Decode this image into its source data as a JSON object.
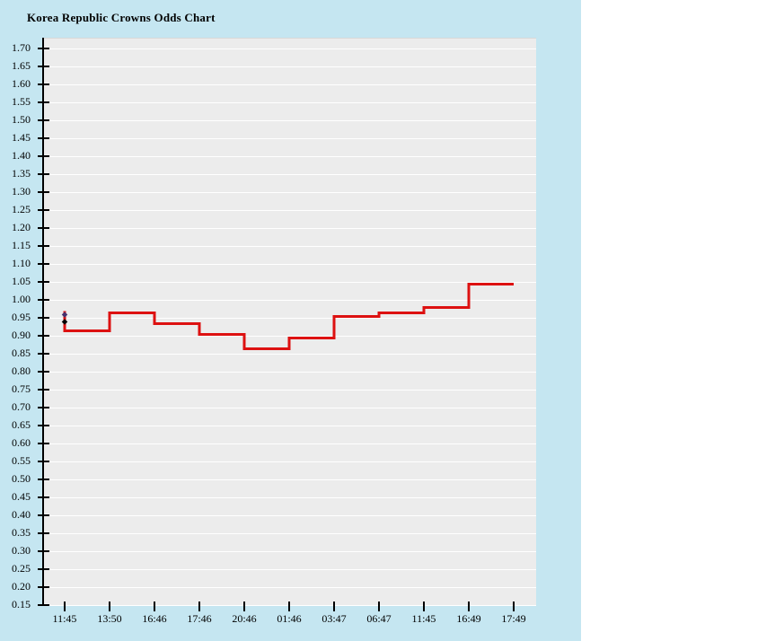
{
  "chart_data": {
    "type": "line",
    "line_style": "step",
    "title": "Korea Republic Crowns Odds Chart",
    "xlabel": "",
    "ylabel": "",
    "ylim": [
      0.15,
      1.7
    ],
    "y_step": 0.05,
    "grid": "horizontal white gridlines on gray plot background",
    "legend_position": "none",
    "line_color": "#dd1111",
    "x_tick_labels": [
      "11:45",
      "13:50",
      "16:46",
      "17:46",
      "20:46",
      "01:46",
      "03:47",
      "06:47",
      "11:45",
      "16:49",
      "17:49"
    ],
    "y_tick_labels": [
      "1.70",
      "1.65",
      "1.60",
      "1.55",
      "1.50",
      "1.45",
      "1.40",
      "1.35",
      "1.30",
      "1.25",
      "1.20",
      "1.15",
      "1.10",
      "1.05",
      "1.00",
      "0.95",
      "0.90",
      "0.85",
      "0.80",
      "0.75",
      "0.70",
      "0.65",
      "0.60",
      "0.55",
      "0.50",
      "0.45",
      "0.40",
      "0.35",
      "0.30",
      "0.25",
      "0.20",
      "0.15"
    ],
    "open_value": 0.97,
    "points": [
      {
        "time": "11:45",
        "odds": 0.915
      },
      {
        "time": "13:50",
        "odds": 0.965
      },
      {
        "time": "16:46",
        "odds": 0.935
      },
      {
        "time": "17:46",
        "odds": 0.905
      },
      {
        "time": "20:46",
        "odds": 0.865
      },
      {
        "time": "01:46",
        "odds": 0.895
      },
      {
        "time": "03:47",
        "odds": 0.955
      },
      {
        "time": "06:47",
        "odds": 0.965
      },
      {
        "time": "11:45",
        "odds": 0.98
      },
      {
        "time": "16:49",
        "odds": 1.045
      }
    ],
    "end_time": "17:49",
    "start_markers": [
      {
        "shape": "diamond",
        "color": "#46316e",
        "value": 0.96
      },
      {
        "shape": "diamond",
        "color": "#000000",
        "value": 0.94
      }
    ]
  },
  "colors": {
    "page_bg": "#ffffff",
    "panel_bg": "#c5e6f1",
    "plot_bg": "#ececec",
    "gridline": "#ffffff",
    "axis": "#000000",
    "line": "#dd1111",
    "text": "#000000"
  }
}
